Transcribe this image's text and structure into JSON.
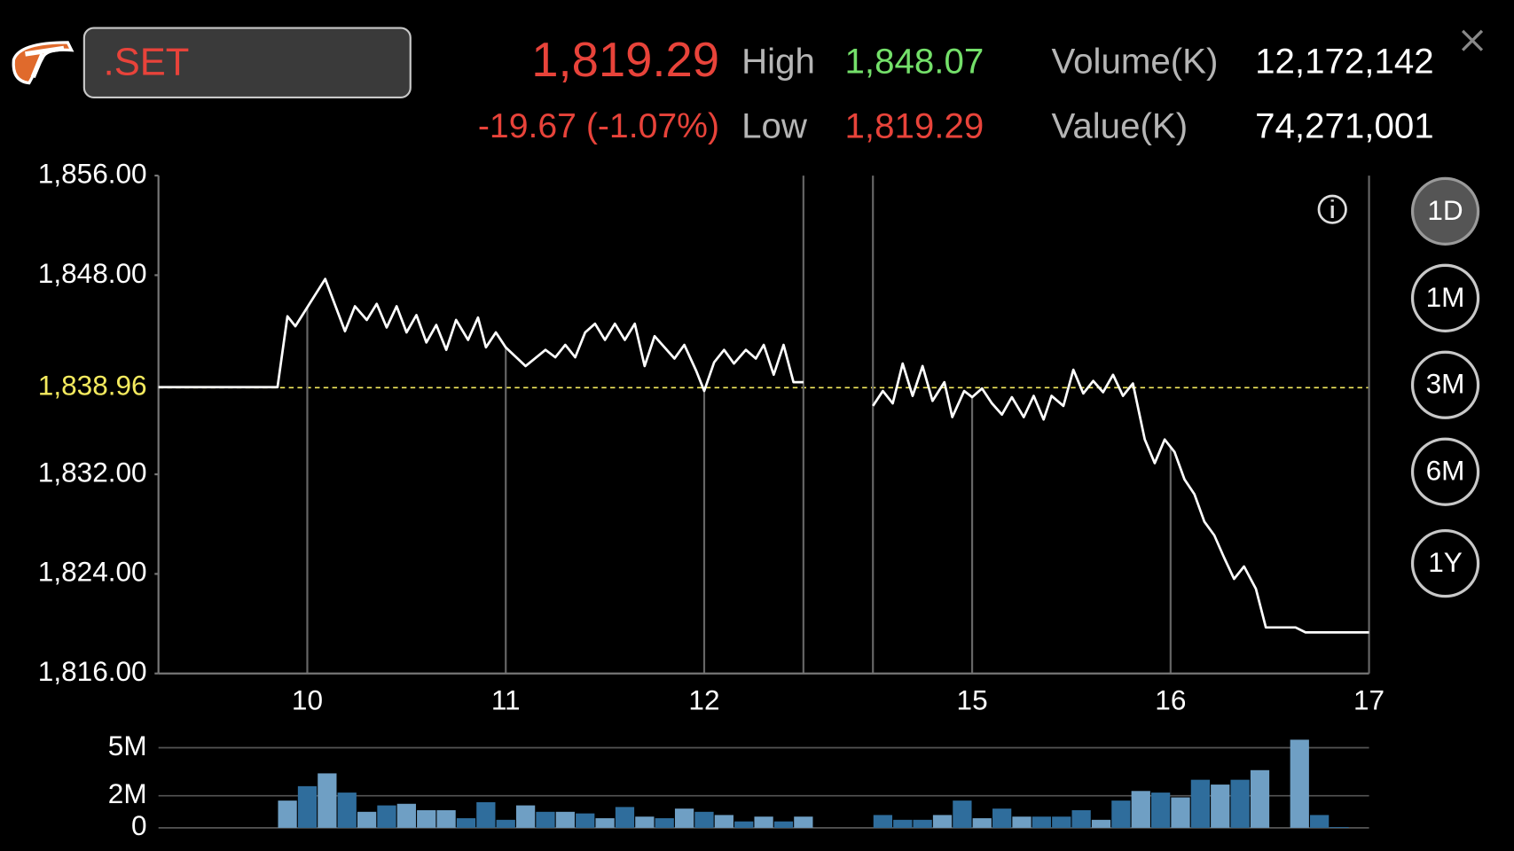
{
  "header": {
    "symbol": ".SET",
    "last": "1,819.29",
    "change": "-19.67 (-1.07%)",
    "stats": [
      {
        "label": "High",
        "value": "1,848.07"
      },
      {
        "label": "Low",
        "value": "1,819.29"
      },
      {
        "label": "Volume(K)",
        "value": "12,172,142"
      },
      {
        "label": "Value(K)",
        "value": "74,271,001"
      }
    ]
  },
  "periods": [
    "1D",
    "1M",
    "3M",
    "6M",
    "1Y"
  ],
  "selected_period": "1D",
  "chart_data": [
    {
      "type": "line",
      "x": [
        9.25,
        9.85,
        9.9,
        9.94,
        10.09,
        10.19,
        10.24,
        10.3,
        10.35,
        10.4,
        10.45,
        10.5,
        10.55,
        10.6,
        10.65,
        10.7,
        10.75,
        10.81,
        10.86,
        10.9,
        10.95,
        11,
        11.1,
        11.2,
        11.25,
        11.3,
        11.35,
        11.4,
        11.45,
        11.5,
        11.55,
        11.6,
        11.65,
        11.7,
        11.75,
        11.85,
        11.9,
        11.96,
        12,
        12.05,
        12.1,
        12.15,
        12.21,
        12.26,
        12.3,
        12.35,
        12.4,
        12.45,
        12.5,
        null,
        14.5,
        14.55,
        14.6,
        14.65,
        14.7,
        14.75,
        14.8,
        14.86,
        14.9,
        14.96,
        15,
        15.05,
        15.1,
        15.15,
        15.2,
        15.26,
        15.31,
        15.36,
        15.4,
        15.46,
        15.51,
        15.56,
        15.61,
        15.66,
        15.71,
        15.76,
        15.81,
        15.87,
        15.92,
        15.97,
        16.02,
        16.07,
        16.12,
        16.17,
        16.22,
        16.27,
        16.32,
        16.37,
        16.43,
        16.48,
        16.63,
        16.68,
        17
      ],
      "series": [
        {
          "color": "#ffffff",
          "values": [
            1839,
            1839,
            1844.7,
            1843.9,
            1847.7,
            1843.5,
            1845.5,
            1844.4,
            1845.7,
            1843.8,
            1845.5,
            1843.4,
            1844.8,
            1842.6,
            1844,
            1842,
            1844.4,
            1842.8,
            1844.6,
            1842.2,
            1843.4,
            1842.2,
            1840.7,
            1842,
            1841.4,
            1842.4,
            1841.4,
            1843.4,
            1844.1,
            1842.8,
            1844.1,
            1842.8,
            1844.1,
            1840.7,
            1843.1,
            1841.3,
            1842.4,
            1840.3,
            1838.7,
            1841,
            1842,
            1840.9,
            1842,
            1841.3,
            1842.4,
            1840,
            1842.4,
            1839.4,
            1839.4,
            null,
            1837.5,
            1838.7,
            1837.7,
            1840.9,
            1838.3,
            1840.7,
            1837.9,
            1839.4,
            1836.6,
            1838.7,
            1838.2,
            1838.9,
            1837.7,
            1836.8,
            1838.2,
            1836.6,
            1838.3,
            1836.4,
            1838.3,
            1837.5,
            1840.4,
            1838.5,
            1839.5,
            1838.6,
            1840,
            1838.3,
            1839.3,
            1834.8,
            1832.9,
            1834.8,
            1833.8,
            1831.6,
            1830.4,
            1828.2,
            1827.1,
            1825.3,
            1823.6,
            1824.6,
            1822.8,
            1819.7,
            1819.7,
            1819.3,
            1819.3
          ]
        }
      ],
      "xlim": [
        9.25,
        17
      ],
      "xticks": [
        10,
        11,
        12,
        15,
        16,
        17
      ],
      "axis_break": [
        12.5,
        14.5
      ],
      "ylim": [
        1816,
        1856
      ],
      "yticks": [
        {
          "value": 1856,
          "label": "1,856.00"
        },
        {
          "value": 1848,
          "label": "1,848.00"
        },
        {
          "value": 1832,
          "label": "1,832.00"
        },
        {
          "value": 1824,
          "label": "1,824.00"
        },
        {
          "value": 1816,
          "label": "1,816.00"
        }
      ],
      "reference_line": {
        "value": 1838.96,
        "label": "1,838.96",
        "color": "#f4ea5e"
      },
      "grid": "x"
    },
    {
      "type": "bar",
      "x": [
        9.9,
        10,
        10.1,
        10.2,
        10.3,
        10.4,
        10.5,
        10.6,
        10.7,
        10.8,
        10.9,
        11,
        11.1,
        11.2,
        11.3,
        11.4,
        11.5,
        11.6,
        11.7,
        11.8,
        11.9,
        12,
        12.1,
        12.2,
        12.3,
        12.4,
        12.5,
        14.55,
        14.65,
        14.75,
        14.85,
        14.95,
        15.05,
        15.15,
        15.25,
        15.35,
        15.45,
        15.55,
        15.65,
        15.75,
        15.85,
        15.95,
        16.05,
        16.15,
        16.25,
        16.35,
        16.45,
        16.65,
        16.75,
        16.85
      ],
      "values": [
        1.7,
        2.6,
        3.4,
        2.2,
        1.0,
        1.4,
        1.5,
        1.1,
        1.1,
        0.6,
        1.6,
        0.5,
        1.4,
        1.0,
        1.0,
        0.9,
        0.6,
        1.3,
        0.7,
        0.6,
        1.2,
        1.0,
        0.8,
        0.4,
        0.7,
        0.4,
        0.7,
        0.8,
        0.5,
        0.5,
        0.8,
        1.7,
        0.6,
        1.2,
        0.7,
        0.7,
        0.7,
        1.1,
        0.5,
        1.7,
        2.3,
        2.2,
        1.9,
        3.0,
        2.7,
        3.0,
        3.6,
        5.5,
        0.8,
        0.05
      ],
      "colors": [
        "#6f9fc4",
        "#2f6d9c",
        "#6f9fc4",
        "#2f6d9c",
        "#6f9fc4",
        "#2f6d9c",
        "#6f9fc4",
        "#6f9fc4",
        "#6f9fc4",
        "#2f6d9c",
        "#2f6d9c",
        "#2f6d9c",
        "#6f9fc4",
        "#2f6d9c",
        "#6f9fc4",
        "#2f6d9c",
        "#6f9fc4",
        "#2f6d9c",
        "#6f9fc4",
        "#2f6d9c",
        "#6f9fc4",
        "#2f6d9c",
        "#6f9fc4",
        "#2f6d9c",
        "#6f9fc4",
        "#2f6d9c",
        "#6f9fc4",
        "#2f6d9c",
        "#2f6d9c",
        "#2f6d9c",
        "#6f9fc4",
        "#2f6d9c",
        "#6f9fc4",
        "#2f6d9c",
        "#6f9fc4",
        "#2f6d9c",
        "#2f6d9c",
        "#2f6d9c",
        "#6f9fc4",
        "#2f6d9c",
        "#6f9fc4",
        "#2f6d9c",
        "#6f9fc4",
        "#2f6d9c",
        "#6f9fc4",
        "#2f6d9c",
        "#6f9fc4",
        "#6f9fc4",
        "#2f6d9c",
        "#2f6d9c"
      ],
      "xlim": [
        9.25,
        17
      ],
      "axis_break": [
        12.5,
        14.5
      ],
      "ylim": [
        0,
        5.6
      ],
      "yticks": [
        0,
        {
          "value": 2,
          "label": "2M"
        },
        {
          "value": 5,
          "label": "5M"
        }
      ],
      "grid": "y"
    }
  ]
}
